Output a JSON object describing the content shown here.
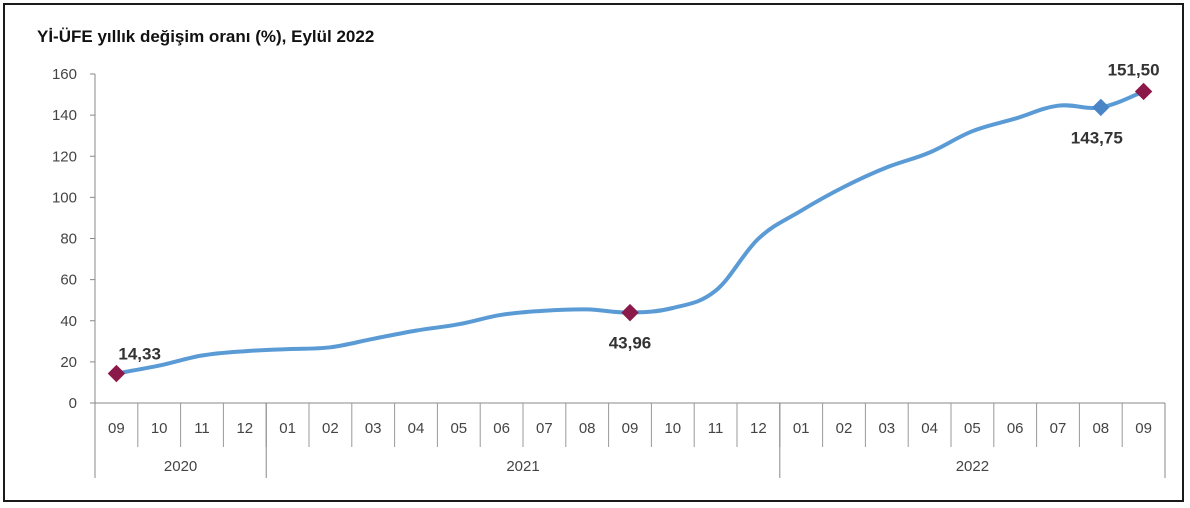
{
  "chart_data": {
    "type": "line",
    "title": "Yİ-ÜFE yıllık değişim oranı (%), Eylül 2022",
    "ylim": [
      0,
      160
    ],
    "y_ticks": [
      "0",
      "20",
      "40",
      "60",
      "80",
      "100",
      "120",
      "140",
      "160"
    ],
    "categories": [
      "09",
      "10",
      "11",
      "12",
      "01",
      "02",
      "03",
      "04",
      "05",
      "06",
      "07",
      "08",
      "09",
      "10",
      "11",
      "12",
      "01",
      "02",
      "03",
      "04",
      "05",
      "06",
      "07",
      "08",
      "09"
    ],
    "years": [
      {
        "label": "2020",
        "count": 4
      },
      {
        "label": "2021",
        "count": 12
      },
      {
        "label": "2022",
        "count": 9
      }
    ],
    "series": [
      {
        "values": [
          14.33,
          18.2,
          23.1,
          25.2,
          26.2,
          27.1,
          31.2,
          35.2,
          38.3,
          42.9,
          44.9,
          45.5,
          43.96,
          46.2,
          54.6,
          79.9,
          93.5,
          105.1,
          114.6,
          121.8,
          132.2,
          138.3,
          144.6,
          143.75,
          151.5
        ]
      }
    ],
    "highlights": [
      {
        "index": 0,
        "label": "14,33",
        "color": "#8b1a4a"
      },
      {
        "index": 12,
        "label": "43,96",
        "color": "#8b1a4a"
      },
      {
        "index": 23,
        "label": "143,75",
        "color": "#4a86c5"
      },
      {
        "index": 24,
        "label": "151,50",
        "color": "#8b1a4a"
      }
    ],
    "line_color": "#5b9bd5",
    "grid": false,
    "legend": "none"
  }
}
